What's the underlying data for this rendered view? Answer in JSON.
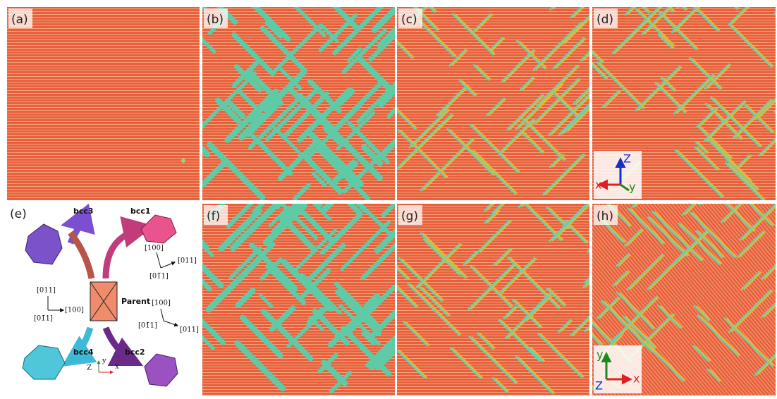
{
  "panels": [
    {
      "label": "(a)"
    },
    {
      "label": "(b)"
    },
    {
      "label": "(c)"
    },
    {
      "label": "(d)"
    },
    {
      "label": "(f)"
    },
    {
      "label": "(g)"
    },
    {
      "label": "(h)"
    }
  ],
  "schematic": {
    "label": "(e)",
    "bcc3": "bcc3",
    "bcc1": "bcc1",
    "parent": "Parent",
    "bcc4": "bcc4",
    "bcc2": "bcc2",
    "dir_bcc1": [
      "[100]",
      "[011]",
      "[01̄1]"
    ],
    "dir_parent": [
      "[011]",
      "[100]",
      "[01̄1]"
    ],
    "dir_bcc2": [
      "[100]",
      "[01̄1]",
      "[011]"
    ],
    "axes": [
      "y",
      "Z",
      "x"
    ]
  },
  "inset_d": {
    "z": "Z",
    "x": "x",
    "y": "y"
  },
  "inset_h": {
    "y": "y",
    "z": "Z",
    "x": "x"
  }
}
